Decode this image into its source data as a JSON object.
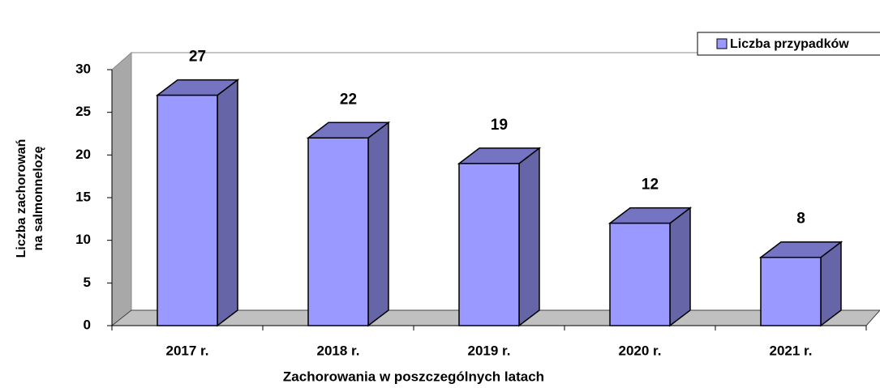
{
  "chart_data": {
    "type": "bar3d",
    "categories": [
      "2017 r.",
      "2018 r.",
      "2019 r.",
      "2020 r.",
      "2021 r."
    ],
    "series": [
      {
        "name": "Liczba przypadków",
        "color": "#9999ff",
        "values": [
          27,
          22,
          19,
          12,
          8
        ]
      }
    ],
    "x_label": "Zachorowania w poszczególnych latach",
    "y_label": [
      "Liczba zachorowań",
      "na salmonnelozę"
    ],
    "ylim": [
      0,
      30
    ],
    "yticks": [
      0,
      5,
      10,
      15,
      20,
      25,
      30
    ],
    "grid": false,
    "legend": "top-right"
  }
}
